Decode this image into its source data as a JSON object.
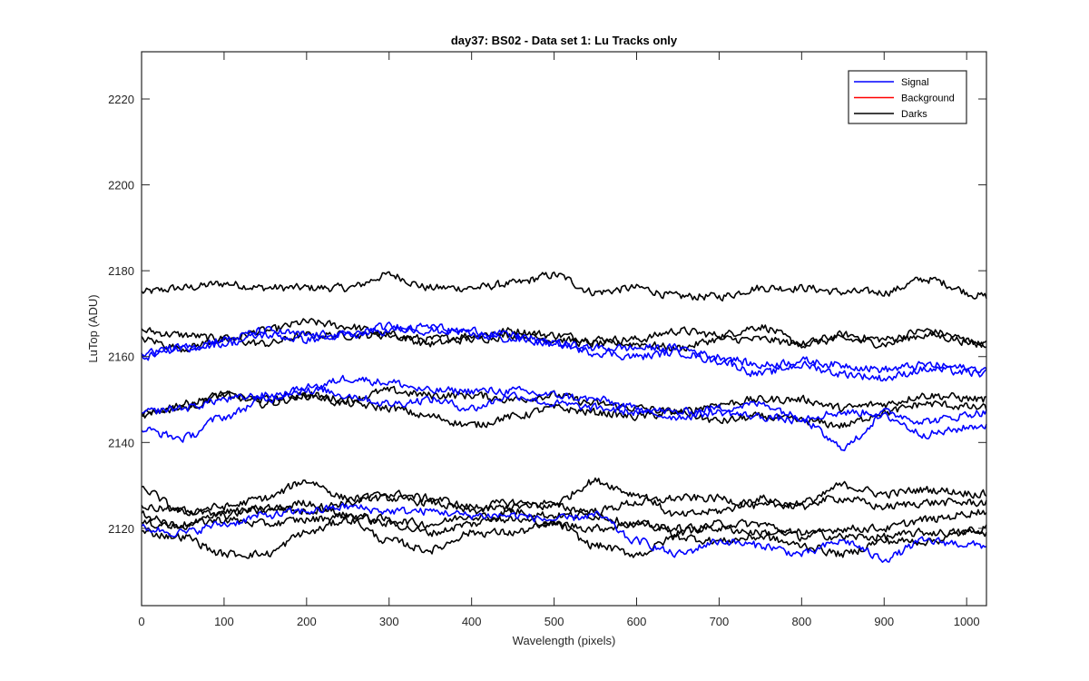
{
  "chart_data": {
    "type": "line",
    "title": "day37: BS02 - Data set 1: Lu Tracks only",
    "xlabel": "Wavelength (pixels)",
    "ylabel": "LuTop (ADU)",
    "xlim": [
      0,
      1024
    ],
    "ylim": [
      2102,
      2231
    ],
    "xticks": [
      0,
      100,
      200,
      300,
      400,
      500,
      600,
      700,
      800,
      900,
      1000
    ],
    "yticks": [
      2120,
      2140,
      2160,
      2180,
      2200,
      2220
    ],
    "grid": false,
    "legend_position": "top-right",
    "legend": [
      {
        "name": "Signal",
        "color": "#0000ff"
      },
      {
        "name": "Background",
        "color": "#ff0000"
      },
      {
        "name": "Darks",
        "color": "#000000"
      }
    ],
    "noise_amplitude": 1.3,
    "series": [
      {
        "group": "Signal",
        "color": "#0000ff",
        "x": [
          0,
          50,
          100,
          150,
          200,
          250,
          300,
          350,
          400,
          450,
          500,
          550,
          600,
          650,
          700,
          750,
          800,
          850,
          900,
          950,
          1024
        ],
        "y": [
          2161,
          2162,
          2163,
          2165,
          2164,
          2165,
          2167,
          2166,
          2166,
          2165,
          2163,
          2162,
          2162,
          2162,
          2160,
          2158,
          2159,
          2158,
          2157,
          2158,
          2157
        ]
      },
      {
        "group": "Signal",
        "color": "#0000ff",
        "x": [
          0,
          50,
          100,
          150,
          200,
          250,
          300,
          350,
          400,
          450,
          500,
          550,
          600,
          650,
          700,
          750,
          800,
          850,
          900,
          950,
          1024
        ],
        "y": [
          2160,
          2162,
          2164,
          2166,
          2165,
          2165,
          2166,
          2167,
          2165,
          2164,
          2163,
          2161,
          2160,
          2161,
          2159,
          2156,
          2158,
          2156,
          2155,
          2157,
          2156
        ]
      },
      {
        "group": "Signal",
        "color": "#0000ff",
        "x": [
          0,
          50,
          100,
          150,
          200,
          250,
          300,
          350,
          400,
          450,
          500,
          550,
          600,
          650,
          700,
          750,
          800,
          850,
          900,
          950,
          1024
        ],
        "y": [
          2147,
          2148,
          2150,
          2151,
          2152,
          2155,
          2154,
          2152,
          2152,
          2152,
          2151,
          2150,
          2148,
          2147,
          2148,
          2149,
          2146,
          2147,
          2147,
          2145,
          2147
        ]
      },
      {
        "group": "Signal",
        "color": "#0000ff",
        "x": [
          0,
          50,
          100,
          150,
          200,
          250,
          300,
          350,
          400,
          450,
          500,
          550,
          600,
          650,
          700,
          750,
          800,
          850,
          900,
          950,
          1024
        ],
        "y": [
          2143,
          2141,
          2146,
          2150,
          2153,
          2151,
          2149,
          2150,
          2148,
          2151,
          2149,
          2148,
          2147,
          2146,
          2147,
          2146,
          2145,
          2139,
          2146,
          2142,
          2144
        ]
      },
      {
        "group": "Signal",
        "color": "#0000ff",
        "x": [
          0,
          50,
          100,
          150,
          200,
          250,
          300,
          350,
          400,
          450,
          500,
          550,
          600,
          650,
          700,
          750,
          800,
          850,
          900,
          950,
          1024
        ],
        "y": [
          2120,
          2119,
          2121,
          2123,
          2124,
          2125,
          2124,
          2124,
          2123,
          2123,
          2122,
          2123,
          2117,
          2114,
          2117,
          2116,
          2114,
          2117,
          2113,
          2117,
          2116
        ]
      },
      {
        "group": "Darks",
        "color": "#000000",
        "x": [
          0,
          50,
          100,
          150,
          200,
          250,
          300,
          350,
          400,
          450,
          500,
          550,
          600,
          650,
          700,
          750,
          800,
          850,
          900,
          950,
          1024
        ],
        "y": [
          2175,
          2176,
          2177,
          2176,
          2176,
          2176,
          2179,
          2176,
          2176,
          2177,
          2179,
          2175,
          2176,
          2174,
          2174,
          2176,
          2176,
          2175,
          2175,
          2178,
          2174
        ]
      },
      {
        "group": "Darks",
        "color": "#000000",
        "x": [
          0,
          50,
          100,
          150,
          200,
          250,
          300,
          350,
          400,
          450,
          500,
          550,
          600,
          650,
          700,
          750,
          800,
          850,
          900,
          950,
          1024
        ],
        "y": [
          2166,
          2165,
          2164,
          2166,
          2168,
          2167,
          2165,
          2164,
          2165,
          2166,
          2165,
          2164,
          2164,
          2166,
          2165,
          2167,
          2163,
          2165,
          2164,
          2166,
          2163
        ]
      },
      {
        "group": "Darks",
        "color": "#000000",
        "x": [
          0,
          50,
          100,
          150,
          200,
          250,
          300,
          350,
          400,
          450,
          500,
          550,
          600,
          650,
          700,
          750,
          800,
          850,
          900,
          950,
          1024
        ],
        "y": [
          2164,
          2162,
          2164,
          2163,
          2165,
          2165,
          2165,
          2163,
          2164,
          2165,
          2164,
          2163,
          2163,
          2162,
          2164,
          2164,
          2163,
          2164,
          2163,
          2165,
          2163
        ]
      },
      {
        "group": "Darks",
        "color": "#000000",
        "x": [
          0,
          50,
          100,
          150,
          200,
          250,
          300,
          350,
          400,
          450,
          500,
          550,
          600,
          650,
          700,
          750,
          800,
          850,
          900,
          950,
          1024
        ],
        "y": [
          2147,
          2148,
          2151,
          2150,
          2151,
          2150,
          2152,
          2151,
          2151,
          2150,
          2151,
          2149,
          2148,
          2147,
          2149,
          2150,
          2150,
          2148,
          2149,
          2151,
          2150
        ]
      },
      {
        "group": "Darks",
        "color": "#000000",
        "x": [
          0,
          50,
          100,
          150,
          200,
          250,
          300,
          350,
          400,
          450,
          500,
          550,
          600,
          650,
          700,
          750,
          800,
          850,
          900,
          950,
          1024
        ],
        "y": [
          2146,
          2149,
          2151,
          2149,
          2151,
          2149,
          2148,
          2146,
          2144,
          2146,
          2148,
          2147,
          2146,
          2147,
          2145,
          2146,
          2145,
          2144,
          2147,
          2149,
          2148
        ]
      },
      {
        "group": "Darks",
        "color": "#000000",
        "x": [
          0,
          50,
          100,
          150,
          200,
          250,
          300,
          350,
          400,
          450,
          500,
          550,
          600,
          650,
          700,
          750,
          800,
          850,
          900,
          950,
          1024
        ],
        "y": [
          2129,
          2124,
          2125,
          2127,
          2131,
          2127,
          2127,
          2126,
          2124,
          2125,
          2126,
          2131,
          2128,
          2123,
          2124,
          2127,
          2125,
          2130,
          2128,
          2129,
          2128
        ]
      },
      {
        "group": "Darks",
        "color": "#000000",
        "x": [
          0,
          50,
          100,
          150,
          200,
          250,
          300,
          350,
          400,
          450,
          500,
          550,
          600,
          650,
          700,
          750,
          800,
          850,
          900,
          950,
          1024
        ],
        "y": [
          2125,
          2124,
          2123,
          2125,
          2124,
          2126,
          2128,
          2127,
          2125,
          2126,
          2125,
          2124,
          2126,
          2127,
          2127,
          2125,
          2126,
          2127,
          2125,
          2126,
          2126
        ]
      },
      {
        "group": "Darks",
        "color": "#000000",
        "x": [
          0,
          50,
          100,
          150,
          200,
          250,
          300,
          350,
          400,
          450,
          500,
          550,
          600,
          650,
          700,
          750,
          800,
          850,
          900,
          950,
          1024
        ],
        "y": [
          2123,
          2120,
          2124,
          2124,
          2126,
          2123,
          2121,
          2119,
          2121,
          2124,
          2123,
          2123,
          2121,
          2119,
          2121,
          2121,
          2118,
          2120,
          2120,
          2122,
          2124
        ]
      },
      {
        "group": "Darks",
        "color": "#000000",
        "x": [
          0,
          50,
          100,
          150,
          200,
          250,
          300,
          350,
          400,
          450,
          500,
          550,
          600,
          650,
          700,
          750,
          800,
          850,
          900,
          950,
          1024
        ],
        "y": [
          2121,
          2121,
          2122,
          2121,
          2122,
          2123,
          2122,
          2121,
          2123,
          2122,
          2121,
          2120,
          2121,
          2120,
          2120,
          2119,
          2119,
          2118,
          2118,
          2119,
          2119
        ]
      },
      {
        "group": "Darks",
        "color": "#000000",
        "x": [
          0,
          50,
          100,
          150,
          200,
          250,
          300,
          350,
          400,
          450,
          500,
          550,
          600,
          650,
          700,
          750,
          800,
          850,
          900,
          950,
          1024
        ],
        "y": [
          2119,
          2118,
          2114,
          2114,
          2119,
          2122,
          2117,
          2115,
          2119,
          2119,
          2121,
          2116,
          2114,
          2118,
          2117,
          2118,
          2116,
          2114,
          2117,
          2117,
          2120
        ]
      }
    ]
  }
}
